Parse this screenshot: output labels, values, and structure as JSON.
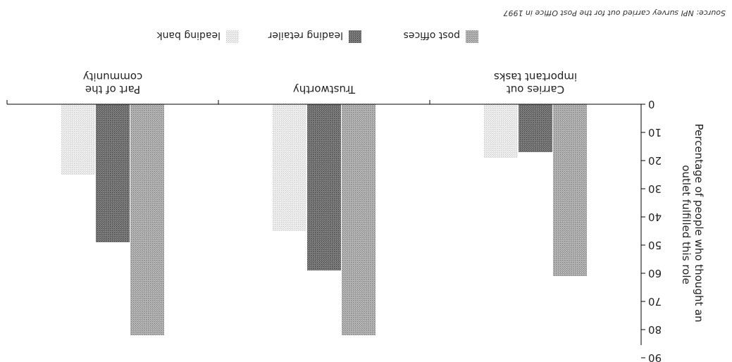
{
  "chart_data": {
    "type": "bar",
    "orientation": "rotated-180",
    "categories": [
      "Carries out\nimportant tasks",
      "Trustworthy",
      "Part of the\ncommunity"
    ],
    "series": [
      {
        "name": "post offices",
        "values": [
          61,
          82,
          82
        ]
      },
      {
        "name": "leading retailer",
        "values": [
          17,
          59,
          49
        ]
      },
      {
        "name": "leading bank",
        "values": [
          19,
          45,
          25
        ]
      }
    ],
    "ylabel": "Percentage of people who thought an outlet fulfilled this role",
    "ylim": [
      0,
      90
    ],
    "yticks": [
      0,
      10,
      20,
      30,
      40,
      50,
      60,
      70,
      80,
      90
    ],
    "grid": false,
    "legend": "top",
    "source": "Source: NPI survey carried out for the Post Office in 1997",
    "colors": {
      "post offices": "#a8a8a8",
      "leading retailer": "#6e6e6e",
      "leading bank": "#dcdcdc"
    }
  }
}
